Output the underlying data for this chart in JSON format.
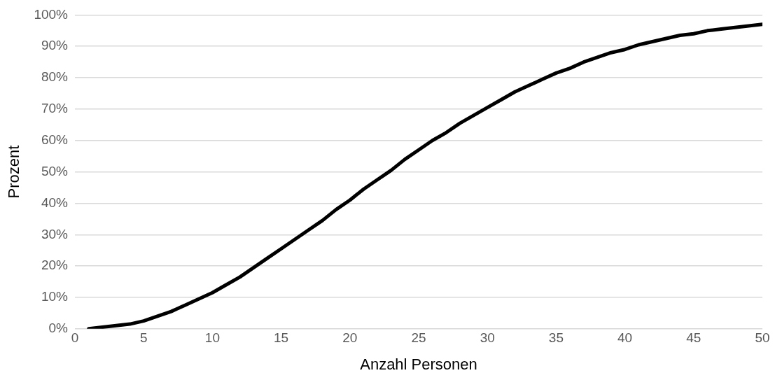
{
  "chart_data": {
    "type": "line",
    "xlabel": "Anzahl Personen",
    "ylabel": "Prozent",
    "x": [
      1,
      2,
      3,
      4,
      5,
      6,
      7,
      8,
      9,
      10,
      11,
      12,
      13,
      14,
      15,
      16,
      17,
      18,
      19,
      20,
      21,
      22,
      23,
      24,
      25,
      26,
      27,
      28,
      29,
      30,
      31,
      32,
      33,
      34,
      35,
      36,
      37,
      38,
      39,
      40,
      41,
      42,
      43,
      44,
      45,
      46,
      47,
      48,
      49,
      50
    ],
    "series": [
      {
        "color": "#000000",
        "values": [
          0,
          0.5,
          1,
          1.5,
          2.5,
          4,
          5.5,
          7.5,
          9.5,
          11.5,
          14,
          16.5,
          19.5,
          22.5,
          25.5,
          28.5,
          31.5,
          34.5,
          38,
          41,
          44.5,
          47.5,
          50.5,
          54,
          57,
          60,
          62.5,
          65.5,
          68,
          70.5,
          73,
          75.5,
          77.5,
          79.5,
          81.5,
          83,
          85,
          86.5,
          88,
          89,
          90.5,
          91.5,
          92.5,
          93.5,
          94,
          95,
          95.5,
          96,
          96.5,
          97
        ]
      }
    ],
    "xlim": [
      0,
      50
    ],
    "xticks": [
      0,
      5,
      10,
      15,
      20,
      25,
      30,
      35,
      40,
      45,
      50
    ],
    "ylim": [
      0,
      100
    ],
    "yticks": [
      {
        "value": 0,
        "label": "0%"
      },
      {
        "value": 10,
        "label": "10%"
      },
      {
        "value": 20,
        "label": "20%"
      },
      {
        "value": 30,
        "label": "30%"
      },
      {
        "value": 40,
        "label": "40%"
      },
      {
        "value": 50,
        "label": "50%"
      },
      {
        "value": 60,
        "label": "60%"
      },
      {
        "value": 70,
        "label": "70%"
      },
      {
        "value": 80,
        "label": "80%"
      },
      {
        "value": 90,
        "label": "90%"
      },
      {
        "value": 100,
        "label": "100%"
      }
    ],
    "grid": "y",
    "legend": false,
    "marker": "none",
    "line_style": "solid"
  }
}
